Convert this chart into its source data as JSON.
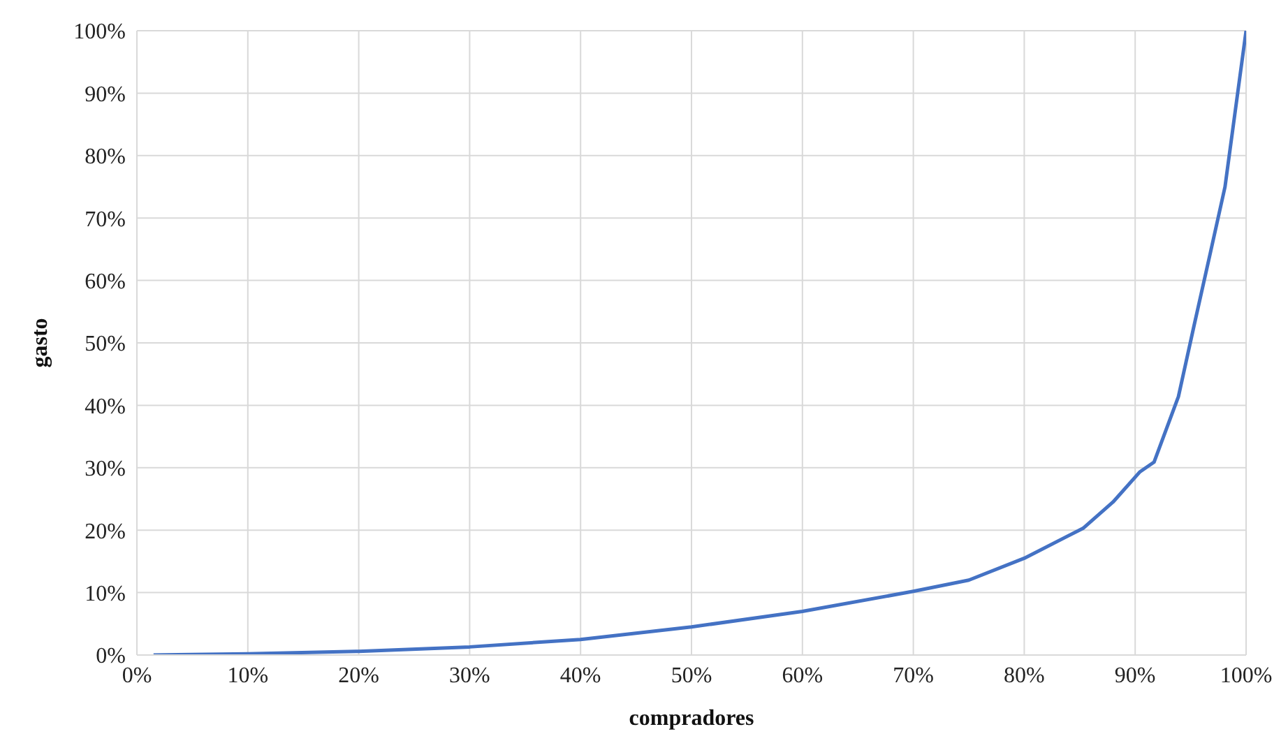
{
  "chart_data": {
    "type": "line",
    "xlabel": "compradores",
    "ylabel": "gasto",
    "x": [
      1.5,
      10,
      20,
      30,
      40,
      50,
      60,
      70,
      75,
      80,
      85.3,
      88,
      90.4,
      91.7,
      93.9,
      95.3,
      96.8,
      98.1,
      100
    ],
    "series": [
      {
        "color": "#4472c4",
        "values": [
          0,
          0.2,
          0.6,
          1.3,
          2.5,
          4.5,
          7,
          10.2,
          12,
          15.5,
          20.3,
          24.5,
          29.3,
          30.9,
          41.4,
          52.7,
          64.6,
          75,
          100
        ]
      }
    ],
    "xlim": [
      0,
      100
    ],
    "ylim": [
      0,
      100
    ],
    "xticks": [
      {
        "value": 0,
        "label": "0%"
      },
      {
        "value": 10,
        "label": "10%"
      },
      {
        "value": 20,
        "label": "20%"
      },
      {
        "value": 30,
        "label": "30%"
      },
      {
        "value": 40,
        "label": "40%"
      },
      {
        "value": 50,
        "label": "50%"
      },
      {
        "value": 60,
        "label": "60%"
      },
      {
        "value": 70,
        "label": "70%"
      },
      {
        "value": 80,
        "label": "80%"
      },
      {
        "value": 90,
        "label": "90%"
      },
      {
        "value": 100,
        "label": "100%"
      }
    ],
    "yticks": [
      {
        "value": 0,
        "label": "0%"
      },
      {
        "value": 10,
        "label": "10%"
      },
      {
        "value": 20,
        "label": "20%"
      },
      {
        "value": 30,
        "label": "30%"
      },
      {
        "value": 40,
        "label": "40%"
      },
      {
        "value": 50,
        "label": "50%"
      },
      {
        "value": 60,
        "label": "60%"
      },
      {
        "value": 70,
        "label": "70%"
      },
      {
        "value": 80,
        "label": "80%"
      },
      {
        "value": 90,
        "label": "90%"
      },
      {
        "value": 100,
        "label": "100%"
      }
    ],
    "grid": true,
    "marker": "none",
    "line_style": "solid"
  }
}
